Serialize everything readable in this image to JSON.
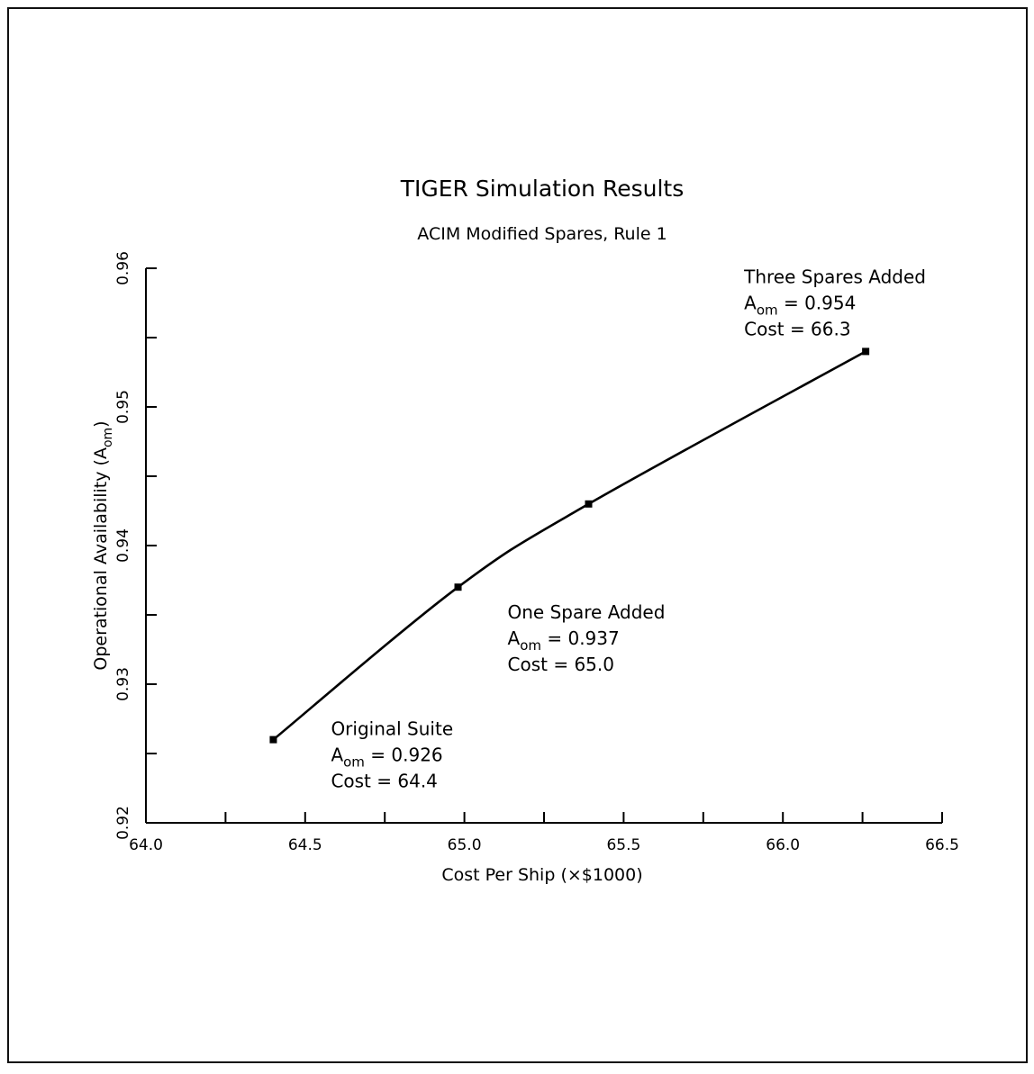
{
  "chart_data": {
    "type": "line",
    "title": "TIGER Simulation Results",
    "subtitle": "ACIM Modified Spares, Rule 1",
    "xlabel": "Cost Per Ship (×$1000)",
    "ylabel": "Operational Availability (A",
    "ylabel_sub": "om",
    "ylabel_close": ")",
    "xlim": [
      64.0,
      66.5
    ],
    "ylim": [
      0.92,
      0.96
    ],
    "x_ticks": [
      64.0,
      64.25,
      64.5,
      64.75,
      65.0,
      65.25,
      65.5,
      65.75,
      66.0,
      66.25,
      66.5
    ],
    "x_tick_labels": [
      "64.0",
      "64.5",
      "65.0",
      "65.5",
      "66.0",
      "66.5"
    ],
    "x_tick_label_values": [
      64.0,
      64.5,
      65.0,
      65.5,
      66.0,
      66.5
    ],
    "y_ticks": [
      0.92,
      0.925,
      0.93,
      0.935,
      0.94,
      0.945,
      0.95,
      0.955,
      0.96
    ],
    "y_tick_labels": [
      "0.92",
      "0.93",
      "0.94",
      "0.95",
      "0.96"
    ],
    "y_tick_label_values": [
      0.92,
      0.93,
      0.94,
      0.95,
      0.96
    ],
    "grid": false,
    "series": [
      {
        "x": [
          64.4,
          64.98,
          65.39,
          66.26
        ],
        "y": [
          0.926,
          0.937,
          0.943,
          0.954
        ]
      }
    ],
    "annotations": [
      {
        "x": 64.4,
        "y": 0.926,
        "lines": [
          "Original Suite",
          "A",
          "om",
          " = 0.926",
          "Cost = 64.4"
        ]
      },
      {
        "x": 64.98,
        "y": 0.937,
        "lines": [
          "One Spare Added",
          "A",
          "om",
          " = 0.937",
          "Cost = 65.0"
        ]
      },
      {
        "x": 66.26,
        "y": 0.954,
        "lines": [
          "Three Spares Added",
          "A",
          "om",
          " = 0.954",
          "Cost = 66.3"
        ]
      }
    ]
  }
}
